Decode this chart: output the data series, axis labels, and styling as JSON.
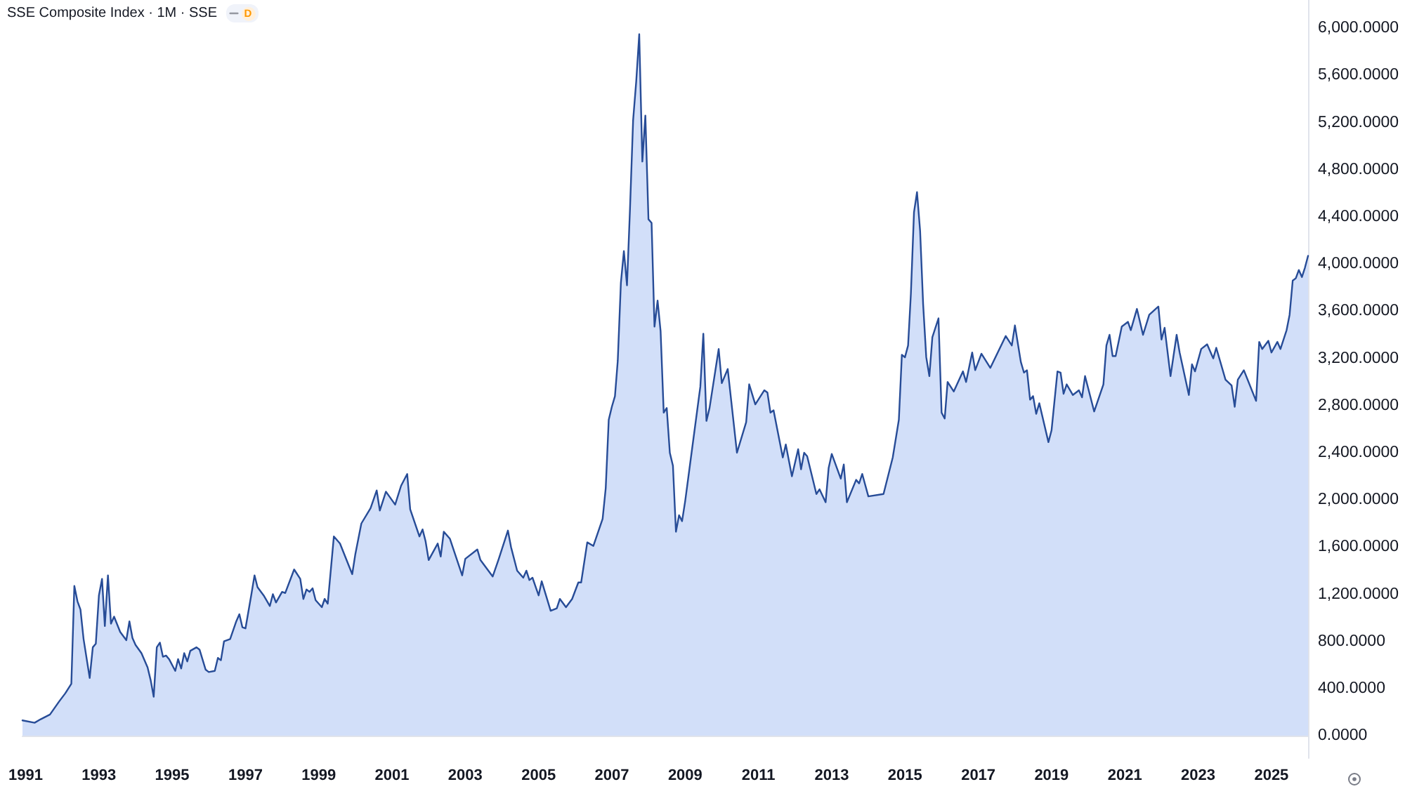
{
  "chart_data": {
    "type": "area",
    "title": "SSE Composite Index · 1M · SSE",
    "annotations": [
      "D"
    ],
    "x": [
      "1990-12",
      "1991-04",
      "1991-06",
      "1991-09",
      "1991-12",
      "1992-02",
      "1992-04",
      "1992-05",
      "1992-06",
      "1992-07",
      "1992-08",
      "1992-10",
      "1992-11",
      "1992-12",
      "1993-01",
      "1993-02",
      "1993-03",
      "1993-04",
      "1993-05",
      "1993-06",
      "1993-08",
      "1993-10",
      "1993-11",
      "1993-12",
      "1994-01",
      "1994-03",
      "1994-05",
      "1994-06",
      "1994-07",
      "1994-08",
      "1994-09",
      "1994-10",
      "1994-11",
      "1994-12",
      "1995-02",
      "1995-03",
      "1995-04",
      "1995-05",
      "1995-06",
      "1995-07",
      "1995-09",
      "1995-10",
      "1995-12",
      "1996-01",
      "1996-03",
      "1996-04",
      "1996-05",
      "1996-06",
      "1996-08",
      "1996-10",
      "1996-11",
      "1996-12",
      "1997-01",
      "1997-03",
      "1997-04",
      "1997-05",
      "1997-07",
      "1997-09",
      "1997-10",
      "1997-11",
      "1998-01",
      "1998-02",
      "1998-05",
      "1998-07",
      "1998-08",
      "1998-09",
      "1998-10",
      "1998-11",
      "1998-12",
      "1999-02",
      "1999-03",
      "1999-04",
      "1999-06",
      "1999-08",
      "1999-12",
      "2000-01",
      "2000-03",
      "2000-06",
      "2000-08",
      "2000-09",
      "2000-11",
      "2001-02",
      "2001-04",
      "2001-06",
      "2001-07",
      "2001-10",
      "2001-11",
      "2001-12",
      "2002-01",
      "2002-04",
      "2002-05",
      "2002-06",
      "2002-08",
      "2002-12",
      "2003-01",
      "2003-05",
      "2003-06",
      "2003-10",
      "2003-12",
      "2004-03",
      "2004-04",
      "2004-06",
      "2004-08",
      "2004-09",
      "2004-10",
      "2004-11",
      "2005-01",
      "2005-02",
      "2005-05",
      "2005-07",
      "2005-08",
      "2005-10",
      "2005-12",
      "2006-02",
      "2006-03",
      "2006-05",
      "2006-07",
      "2006-10",
      "2006-11",
      "2006-12",
      "2007-01",
      "2007-02",
      "2007-03",
      "2007-04",
      "2007-05",
      "2007-06",
      "2007-07",
      "2007-08",
      "2007-09",
      "2007-10",
      "2007-11",
      "2007-12",
      "2008-01",
      "2008-02",
      "2008-03",
      "2008-04",
      "2008-05",
      "2008-06",
      "2008-07",
      "2008-08",
      "2008-09",
      "2008-10",
      "2008-11",
      "2008-12",
      "2009-01",
      "2009-03",
      "2009-06",
      "2009-07",
      "2009-08",
      "2009-09",
      "2009-12",
      "2010-01",
      "2010-03",
      "2010-06",
      "2010-09",
      "2010-10",
      "2010-12",
      "2011-03",
      "2011-04",
      "2011-05",
      "2011-06",
      "2011-09",
      "2011-10",
      "2011-12",
      "2012-02",
      "2012-03",
      "2012-04",
      "2012-05",
      "2012-08",
      "2012-09",
      "2012-11",
      "2012-12",
      "2013-01",
      "2013-04",
      "2013-05",
      "2013-06",
      "2013-09",
      "2013-10",
      "2013-11",
      "2014-01",
      "2014-06",
      "2014-09",
      "2014-11",
      "2014-12",
      "2015-01",
      "2015-02",
      "2015-03",
      "2015-04",
      "2015-05",
      "2015-06",
      "2015-07",
      "2015-08",
      "2015-09",
      "2015-10",
      "2015-12",
      "2016-01",
      "2016-02",
      "2016-03",
      "2016-05",
      "2016-08",
      "2016-09",
      "2016-11",
      "2016-12",
      "2017-02",
      "2017-05",
      "2017-10",
      "2017-12",
      "2018-01",
      "2018-03",
      "2018-04",
      "2018-05",
      "2018-06",
      "2018-07",
      "2018-08",
      "2018-09",
      "2018-12",
      "2019-01",
      "2019-03",
      "2019-04",
      "2019-05",
      "2019-06",
      "2019-08",
      "2019-10",
      "2019-11",
      "2019-12",
      "2020-03",
      "2020-06",
      "2020-07",
      "2020-08",
      "2020-09",
      "2020-10",
      "2020-12",
      "2021-02",
      "2021-03",
      "2021-05",
      "2021-07",
      "2021-09",
      "2021-12",
      "2022-01",
      "2022-02",
      "2022-04",
      "2022-06",
      "2022-07",
      "2022-10",
      "2022-11",
      "2022-12",
      "2023-02",
      "2023-04",
      "2023-06",
      "2023-07",
      "2023-10",
      "2023-12",
      "2024-01",
      "2024-02",
      "2024-04",
      "2024-08",
      "2024-09",
      "2024-10",
      "2024-12",
      "2025-01",
      "2025-03",
      "2025-04",
      "2025-06",
      "2025-07",
      "2025-08",
      "2025-09",
      "2025-10",
      "2025-11",
      "2025-12",
      "2026-01"
    ],
    "values": [
      130,
      110,
      140,
      180,
      290,
      360,
      440,
      1270,
      1140,
      1070,
      820,
      490,
      750,
      780,
      1190,
      1330,
      930,
      1360,
      950,
      1010,
      880,
      810,
      970,
      830,
      770,
      700,
      580,
      470,
      330,
      750,
      790,
      670,
      680,
      650,
      550,
      650,
      570,
      700,
      630,
      720,
      750,
      730,
      560,
      540,
      550,
      660,
      640,
      800,
      820,
      970,
      1030,
      920,
      910,
      1200,
      1360,
      1260,
      1190,
      1100,
      1200,
      1130,
      1220,
      1210,
      1410,
      1330,
      1160,
      1240,
      1220,
      1250,
      1150,
      1090,
      1160,
      1120,
      1690,
      1630,
      1370,
      1540,
      1800,
      1930,
      2080,
      1910,
      2070,
      1960,
      2120,
      2220,
      1920,
      1690,
      1750,
      1650,
      1490,
      1630,
      1520,
      1730,
      1670,
      1360,
      1500,
      1580,
      1490,
      1350,
      1500,
      1740,
      1600,
      1400,
      1340,
      1400,
      1320,
      1340,
      1190,
      1310,
      1060,
      1080,
      1160,
      1090,
      1160,
      1300,
      1300,
      1640,
      1610,
      1840,
      2100,
      2680,
      2790,
      2880,
      3180,
      3840,
      4110,
      3820,
      4470,
      5220,
      5550,
      5950,
      4870,
      5260,
      4380,
      4350,
      3470,
      3690,
      3430,
      2740,
      2780,
      2400,
      2290,
      1730,
      1870,
      1820,
      1990,
      2370,
      2960,
      3410,
      2670,
      2780,
      3280,
      2990,
      3110,
      2400,
      2660,
      2980,
      2810,
      2930,
      2910,
      2740,
      2760,
      2360,
      2470,
      2200,
      2430,
      2260,
      2400,
      2370,
      2050,
      2090,
      1980,
      2270,
      2390,
      2180,
      2300,
      1980,
      2170,
      2140,
      2220,
      2030,
      2050,
      2360,
      2680,
      3230,
      3210,
      3310,
      3750,
      4440,
      4610,
      4280,
      3660,
      3210,
      3050,
      3380,
      3540,
      2740,
      2690,
      3000,
      2920,
      3090,
      3000,
      3250,
      3100,
      3240,
      3120,
      3390,
      3310,
      3480,
      3170,
      3080,
      3100,
      2850,
      2880,
      2730,
      2820,
      2490,
      2590,
      3090,
      3080,
      2900,
      2980,
      2890,
      2930,
      2870,
      3050,
      2750,
      2980,
      3310,
      3400,
      3220,
      3220,
      3470,
      3510,
      3440,
      3620,
      3400,
      3570,
      3640,
      3360,
      3460,
      3050,
      3400,
      3250,
      2890,
      3150,
      3090,
      3280,
      3320,
      3200,
      3290,
      3020,
      2970,
      2790,
      3020,
      3100,
      2840,
      3340,
      3280,
      3350,
      3250,
      3340,
      3280,
      3440,
      3570,
      3860,
      3880,
      3950,
      3890,
      3970,
      4070
    ],
    "color": "#274c97",
    "marker": "none",
    "line_style": "solid",
    "grid": false,
    "xlim": [
      "1990-12",
      "2026-01"
    ],
    "xticks": [
      "1991",
      "1993",
      "1995",
      "1997",
      "1999",
      "2001",
      "2003",
      "2005",
      "2007",
      "2009",
      "2011",
      "2013",
      "2015",
      "2017",
      "2019",
      "2021",
      "2023",
      "2025"
    ],
    "ylim": [
      -190,
      6240
    ],
    "yticks": [
      {
        "value": 0,
        "label": "0.0000"
      },
      {
        "value": 400,
        "label": "400.0000"
      },
      {
        "value": 800,
        "label": "800.0000"
      },
      {
        "value": 1200,
        "label": "1,200.0000"
      },
      {
        "value": 1600,
        "label": "1,600.0000"
      },
      {
        "value": 2000,
        "label": "2,000.0000"
      },
      {
        "value": 2400,
        "label": "2,400.0000"
      },
      {
        "value": 2800,
        "label": "2,800.0000"
      },
      {
        "value": 3200,
        "label": "3,200.0000"
      },
      {
        "value": 3600,
        "label": "3,600.0000"
      },
      {
        "value": 4000,
        "label": "4,000.0000"
      },
      {
        "value": 4400,
        "label": "4,400.0000"
      },
      {
        "value": 4800,
        "label": "4,800.0000"
      },
      {
        "value": 5200,
        "label": "5,200.0000"
      },
      {
        "value": 5600,
        "label": "5,600.0000"
      },
      {
        "value": 6000,
        "label": "6,000.0000"
      }
    ]
  }
}
